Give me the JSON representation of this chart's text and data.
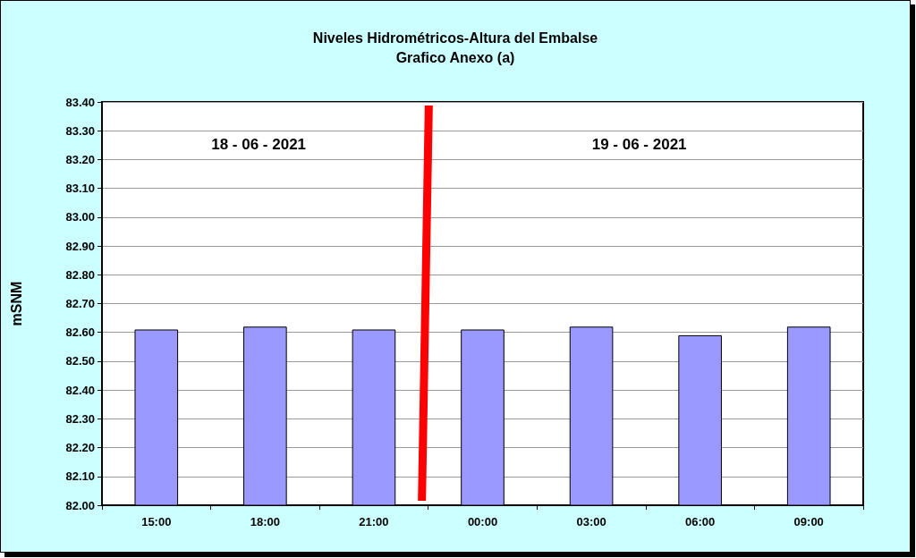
{
  "chart_data": {
    "type": "bar",
    "title": "Niveles Hidrométricos-Altura del Embalse",
    "subtitle": "Grafico Anexo (a)",
    "ylabel": "mSNM",
    "categories": [
      "15:00",
      "18:00",
      "21:00",
      "00:00",
      "03:00",
      "06:00",
      "09:00"
    ],
    "values": [
      82.61,
      82.62,
      82.61,
      82.61,
      82.62,
      82.59,
      82.62
    ],
    "color": "#9999ff",
    "ylim": [
      82.0,
      83.4
    ],
    "yticks": [
      {
        "value": 82.0,
        "label": "82.00"
      },
      {
        "value": 82.1,
        "label": "82.10"
      },
      {
        "value": 82.2,
        "label": "82.20"
      },
      {
        "value": 82.3,
        "label": "82.30"
      },
      {
        "value": 82.4,
        "label": "82.40"
      },
      {
        "value": 82.5,
        "label": "82.50"
      },
      {
        "value": 82.6,
        "label": "82.60"
      },
      {
        "value": 82.7,
        "label": "82.70"
      },
      {
        "value": 82.8,
        "label": "82.80"
      },
      {
        "value": 82.9,
        "label": "82.90"
      },
      {
        "value": 83.0,
        "label": "83.00"
      },
      {
        "value": 83.1,
        "label": "83.10"
      },
      {
        "value": 83.2,
        "label": "83.20"
      },
      {
        "value": 83.3,
        "label": "83.30"
      },
      {
        "value": 83.4,
        "label": "83.40"
      }
    ],
    "grid": "y",
    "annotations": [
      "18 - 06 - 2021",
      "19 - 06 - 2021"
    ]
  }
}
